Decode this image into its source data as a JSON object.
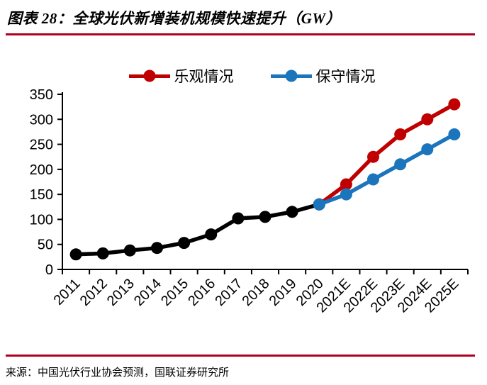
{
  "header": {
    "title": "图表 28：全球光伏新增装机规模快速提升（GW）"
  },
  "footer": {
    "source": "来源：中国光伏行业协会预测，国联证券研究所"
  },
  "colors": {
    "rule": "#b00020",
    "axis": "#000000",
    "history": "#000000",
    "optimistic": "#c00000",
    "conservative": "#1b75bc"
  },
  "chart_data": {
    "type": "line",
    "title": "全球光伏新增装机规模快速提升（GW）",
    "unit": "GW",
    "categories": [
      "2011",
      "2012",
      "2013",
      "2014",
      "2015",
      "2016",
      "2017",
      "2018",
      "2019",
      "2020",
      "2021E",
      "2022E",
      "2023E",
      "2024E",
      "2025E"
    ],
    "ylim": [
      0,
      350
    ],
    "y_ticks": [
      0,
      50,
      100,
      150,
      200,
      250,
      300,
      350
    ],
    "grid": false,
    "legend_position": "top-center",
    "legend": [
      {
        "label": "乐观情况",
        "color": "#c00000"
      },
      {
        "label": "保守情况",
        "color": "#1b75bc"
      }
    ],
    "series": [
      {
        "name": "",
        "color": "#000000",
        "values": [
          30,
          32,
          38,
          43,
          53,
          70,
          102,
          105,
          115,
          130,
          null,
          null,
          null,
          null,
          null
        ]
      },
      {
        "name": "乐观情况",
        "color": "#c00000",
        "values": [
          null,
          null,
          null,
          null,
          null,
          null,
          null,
          null,
          null,
          130,
          170,
          225,
          270,
          300,
          330
        ]
      },
      {
        "name": "保守情况",
        "color": "#1b75bc",
        "values": [
          null,
          null,
          null,
          null,
          null,
          null,
          null,
          null,
          null,
          130,
          150,
          180,
          210,
          240,
          270
        ]
      }
    ]
  }
}
